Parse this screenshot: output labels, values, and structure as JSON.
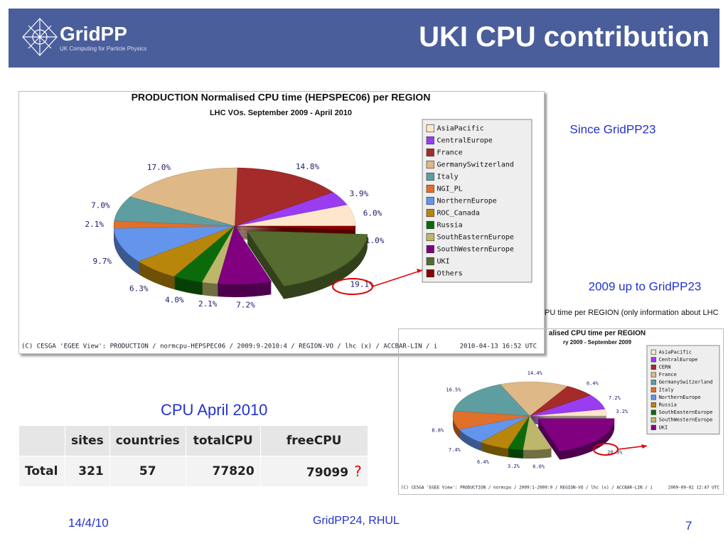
{
  "header": {
    "logo": "GridPP",
    "tagline": "UK Computing for Particle Physics",
    "title": "UKI CPU contribution"
  },
  "chart_data": [
    {
      "type": "pie",
      "title": "PRODUCTION Normalised CPU time (HEPSPEC06) per REGION",
      "subtitle": "LHC VOs. September 2009 - April 2010",
      "categories": [
        "AsiaPacific",
        "CentralEurope",
        "France",
        "GermanySwitzerland",
        "Italy",
        "NGI_PL",
        "NorthernEurope",
        "ROC_Canada",
        "Russia",
        "SouthEasternEurope",
        "SouthWesternEurope",
        "UKI",
        "Others"
      ],
      "values": [
        6.0,
        3.9,
        14.8,
        17.0,
        7.0,
        2.1,
        9.7,
        6.3,
        4.0,
        2.1,
        7.2,
        19.1,
        1.0
      ],
      "value_labels": [
        "6.0%",
        "3.9%",
        "14.8%",
        "17.0%",
        "7.0%",
        "2.1%",
        "9.7%",
        "6.3%",
        "4.0%",
        "2.1%",
        "7.2%",
        "19.1%",
        "1.0%"
      ],
      "colors": [
        "#fde6cc",
        "#9a3cf0",
        "#a52a2a",
        "#deb887",
        "#5f9ea0",
        "#e0702a",
        "#6495ed",
        "#b8860b",
        "#0b6b0b",
        "#bdb76b",
        "#800080",
        "#556b2f",
        "#8b0000"
      ],
      "exploded": "UKI",
      "annotation": "Since GridPP23",
      "footer": "(C) CESGA 'EGEE View': PRODUCTION / normcpu-HEPSPEC06 / 2009:9-2010:4 / REGION-VO / lhc (x) / ACCBAR-LIN / i",
      "timestamp": "2010-04-13 16:52 UTC"
    },
    {
      "type": "pie",
      "title": "alised CPU time per REGION",
      "subtitle": "ry 2009 - September 2009",
      "caption": "PU time per REGION (only information about LHC",
      "categories": [
        "AsiaPacific",
        "CentralEurope",
        "CERN",
        "France",
        "GermanySwitzerland",
        "Italy",
        "NorthernEurope",
        "Russia",
        "SouthEasternEurope",
        "SouthWesternEurope",
        "UKI"
      ],
      "values": [
        3.2,
        7.2,
        6.4,
        14.4,
        16.5,
        8.8,
        7.4,
        6.4,
        3.2,
        6.0,
        20.3
      ],
      "value_labels": [
        "3.2%",
        "7.2%",
        "6.4%",
        "14.4%",
        "16.5%",
        "8.8%",
        "7.4%",
        "6.4%",
        "3.2%",
        "6.0%",
        "20.3%"
      ],
      "colors": [
        "#fde6cc",
        "#9a3cf0",
        "#a52a2a",
        "#deb887",
        "#5f9ea0",
        "#e0702a",
        "#6495ed",
        "#b8860b",
        "#0b6b0b",
        "#bdb76b",
        "#800080"
      ],
      "exploded": "UKI",
      "annotation": "2009 up to GridPP23",
      "footer": "(C) CESGA 'EGEE View': PRODUCTION / normcpu / 2009:1-2009:9 / REGION-VO / lhc (x) / ACCBAR-LIN / i",
      "timestamp": "2009-09-02 12:47 UTC"
    }
  ],
  "table": {
    "caption": "CPU April 2010",
    "columns": [
      "sites",
      "countries",
      "totalCPU",
      "freeCPU"
    ],
    "rows": [
      [
        "Total",
        321,
        57,
        77820,
        79099
      ]
    ],
    "note": "?"
  },
  "footer": {
    "date": "14/4/10",
    "event": "GridPP24, RHUL",
    "page": 7
  }
}
